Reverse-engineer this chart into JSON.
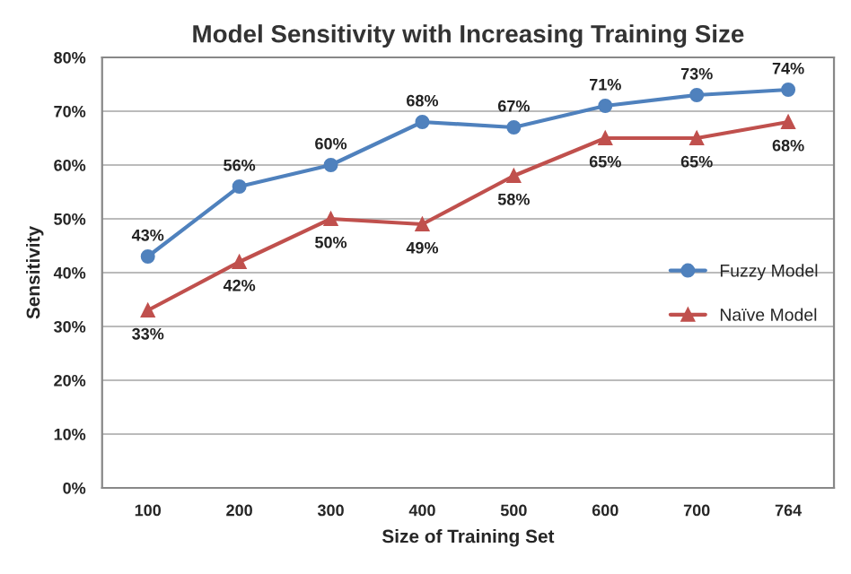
{
  "chart_data": {
    "type": "line",
    "title": "Model Sensitivity with Increasing Training Size",
    "xlabel": "Size of Training Set",
    "ylabel": "Sensitivity",
    "categories": [
      "100",
      "200",
      "300",
      "400",
      "500",
      "600",
      "700",
      "764"
    ],
    "series": [
      {
        "name": "Fuzzy Model",
        "color": "#4f81bd",
        "marker": "circle",
        "values": [
          43,
          56,
          60,
          68,
          67,
          71,
          73,
          74
        ],
        "value_labels": [
          "43%",
          "56%",
          "60%",
          "68%",
          "67%",
          "71%",
          "73%",
          "74%"
        ]
      },
      {
        "name": "Naïve Model",
        "color": "#c0504d",
        "marker": "triangle",
        "values": [
          33,
          42,
          50,
          49,
          58,
          65,
          65,
          68
        ],
        "value_labels": [
          "33%",
          "42%",
          "50%",
          "49%",
          "58%",
          "65%",
          "65%",
          "68%"
        ]
      }
    ],
    "ylim": [
      0,
      80
    ],
    "yticks": [
      {
        "value": 0,
        "label": "0%"
      },
      {
        "value": 10,
        "label": "10%"
      },
      {
        "value": 20,
        "label": "20%"
      },
      {
        "value": 30,
        "label": "30%"
      },
      {
        "value": 40,
        "label": "40%"
      },
      {
        "value": 50,
        "label": "50%"
      },
      {
        "value": 60,
        "label": "60%"
      },
      {
        "value": 70,
        "label": "70%"
      },
      {
        "value": 80,
        "label": "80%"
      }
    ],
    "grid": "y",
    "legend": "right",
    "line_style": "solid"
  }
}
